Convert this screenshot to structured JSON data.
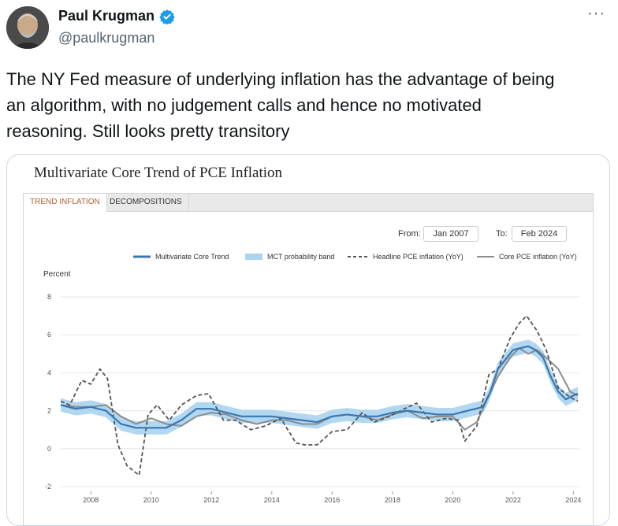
{
  "author": {
    "name": "Paul Krugman",
    "handle": "@paulkrugman"
  },
  "tweet": {
    "text_line1": "The NY Fed measure of underlying inflation has the advantage of being",
    "text_line2": "an algorithm, with no judgement calls and hence no motivated",
    "text_line3": "reasoning. Still looks pretty transitory"
  },
  "more_label": "···",
  "chart": {
    "title": "Multivariate Core Trend of PCE Inflation",
    "tabs": [
      "TREND INFLATION",
      "DECOMPOSITIONS"
    ],
    "from_label": "From:",
    "from_value": "Jan 2007",
    "to_label": "To:",
    "to_value": "Feb 2024",
    "legend": [
      "Multivariate Core Trend",
      "MCT probability band",
      "Headline PCE inflation (YoY)",
      "Core PCE inflation (YoY)"
    ],
    "colors": {
      "mct": "#3a77b2",
      "band": "#a9d3ef",
      "headline": "#555555",
      "core": "#8c8c8c"
    }
  },
  "chart_data": {
    "type": "line",
    "ylabel": "Percent",
    "ylim": [
      -2,
      8
    ],
    "yticks": [
      "8",
      "6",
      "4",
      "2",
      "0",
      "-2"
    ],
    "ytick_values": [
      8,
      6,
      4,
      2,
      0,
      -2
    ],
    "xlim": [
      2007,
      2024.2
    ],
    "xticks": [
      "2008",
      "2010",
      "2012",
      "2014",
      "2016",
      "2018",
      "2020",
      "2022",
      "2024"
    ],
    "xtick_values": [
      2008,
      2010,
      2012,
      2014,
      2016,
      2018,
      2020,
      2022,
      2024
    ],
    "series": [
      {
        "name": "Multivariate Core Trend",
        "x": [
          2007,
          2007.5,
          2008,
          2008.5,
          2009,
          2009.5,
          2010,
          2010.5,
          2011,
          2011.5,
          2012,
          2012.5,
          2013,
          2013.5,
          2014,
          2014.5,
          2015,
          2015.5,
          2016,
          2016.5,
          2017,
          2017.5,
          2018,
          2018.5,
          2019,
          2019.5,
          2020,
          2020.5,
          2021,
          2021.25,
          2021.5,
          2021.75,
          2022,
          2022.25,
          2022.5,
          2022.75,
          2023,
          2023.25,
          2023.5,
          2023.75,
          2024,
          2024.15
        ],
        "values": [
          2.3,
          2.1,
          2.2,
          2.0,
          1.3,
          1.1,
          1.1,
          1.1,
          1.5,
          2.1,
          2.1,
          1.9,
          1.7,
          1.7,
          1.7,
          1.6,
          1.5,
          1.4,
          1.7,
          1.8,
          1.7,
          1.7,
          1.9,
          2.0,
          1.9,
          1.8,
          1.8,
          2.0,
          2.2,
          3.0,
          4.2,
          4.7,
          5.2,
          5.3,
          5.4,
          5.2,
          4.8,
          3.8,
          3.0,
          2.6,
          2.8,
          2.9
        ]
      },
      {
        "name": "Headline PCE inflation (YoY)",
        "x": [
          2007,
          2007.3,
          2007.7,
          2008,
          2008.3,
          2008.55,
          2008.9,
          2009.2,
          2009.6,
          2009.9,
          2010.2,
          2010.6,
          2011,
          2011.5,
          2011.9,
          2012.4,
          2012.8,
          2013.3,
          2013.8,
          2014.3,
          2014.8,
          2015.1,
          2015.5,
          2016,
          2016.5,
          2017,
          2017.4,
          2017.9,
          2018.4,
          2018.8,
          2019.3,
          2019.8,
          2020.2,
          2020.4,
          2020.8,
          2021.2,
          2021.5,
          2021.9,
          2022.2,
          2022.45,
          2022.8,
          2023.1,
          2023.5,
          2023.9,
          2024.15
        ],
        "values": [
          2.5,
          2.3,
          3.6,
          3.4,
          4.2,
          3.7,
          0.2,
          -0.9,
          -1.4,
          1.8,
          2.3,
          1.5,
          2.3,
          2.8,
          2.9,
          1.5,
          1.5,
          1.0,
          1.2,
          1.6,
          0.3,
          0.2,
          0.2,
          0.9,
          1.0,
          1.9,
          1.4,
          1.7,
          2.1,
          2.4,
          1.4,
          1.6,
          1.5,
          0.4,
          1.2,
          3.9,
          4.2,
          5.8,
          6.6,
          7.0,
          6.2,
          5.2,
          3.2,
          2.7,
          2.5
        ]
      },
      {
        "name": "Core PCE inflation (YoY)",
        "x": [
          2007,
          2007.5,
          2008,
          2008.5,
          2009,
          2009.5,
          2010,
          2010.5,
          2011,
          2011.5,
          2012,
          2012.5,
          2013,
          2013.5,
          2014,
          2014.5,
          2015,
          2015.5,
          2016,
          2016.5,
          2017,
          2017.5,
          2018,
          2018.5,
          2019,
          2019.5,
          2020,
          2020.4,
          2020.8,
          2021.2,
          2021.5,
          2021.9,
          2022.2,
          2022.5,
          2022.8,
          2023.1,
          2023.5,
          2023.9,
          2024.15
        ],
        "values": [
          2.3,
          2.2,
          2.2,
          2.3,
          1.7,
          1.3,
          1.6,
          1.3,
          1.2,
          1.7,
          1.9,
          1.8,
          1.5,
          1.3,
          1.5,
          1.5,
          1.3,
          1.3,
          1.7,
          1.8,
          1.7,
          1.5,
          1.8,
          2.0,
          1.6,
          1.7,
          1.7,
          1.0,
          1.4,
          2.8,
          3.8,
          4.8,
          5.3,
          5.0,
          5.2,
          4.8,
          4.2,
          3.0,
          2.8
        ]
      }
    ],
    "band": {
      "name": "MCT probability band",
      "width": 0.35
    }
  }
}
